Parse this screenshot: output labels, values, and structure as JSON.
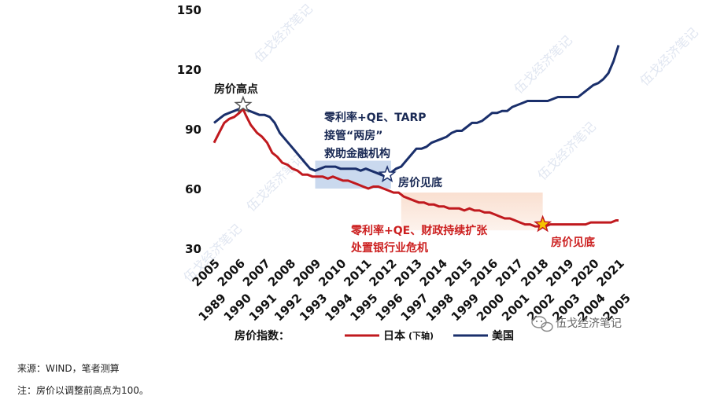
{
  "chart_data": {
    "type": "line",
    "yticks": [
      150,
      120,
      90,
      60,
      30
    ],
    "ylim": [
      30,
      150
    ],
    "x_labels_bottom": [
      "1989",
      "1990",
      "1991",
      "1992",
      "1993",
      "1994",
      "1995",
      "1996",
      "1997",
      "1998",
      "1999",
      "2000",
      "2001",
      "2002",
      "2003",
      "2004",
      "2005"
    ],
    "x_labels_top": [
      "2005",
      "2006",
      "2007",
      "2008",
      "2009",
      "2010",
      "2011",
      "2012",
      "2013",
      "2014",
      "2015",
      "2016",
      "2017",
      "2018",
      "2019",
      "2020",
      "2021"
    ],
    "series": [
      {
        "name": "日本",
        "name_suffix": "(下轴)",
        "color": "#c0191e",
        "points": [
          [
            0.0,
            83
          ],
          [
            0.2,
            88
          ],
          [
            0.4,
            93
          ],
          [
            0.6,
            95
          ],
          [
            0.8,
            96
          ],
          [
            1.0,
            98
          ],
          [
            1.15,
            100
          ],
          [
            1.25,
            97
          ],
          [
            1.45,
            92
          ],
          [
            1.7,
            88
          ],
          [
            1.9,
            86
          ],
          [
            2.1,
            83
          ],
          [
            2.3,
            78
          ],
          [
            2.5,
            76
          ],
          [
            2.7,
            73
          ],
          [
            2.9,
            72
          ],
          [
            3.1,
            70
          ],
          [
            3.3,
            69
          ],
          [
            3.5,
            67
          ],
          [
            3.7,
            67
          ],
          [
            3.9,
            66
          ],
          [
            4.1,
            66
          ],
          [
            4.3,
            66
          ],
          [
            4.5,
            65
          ],
          [
            4.7,
            66
          ],
          [
            4.9,
            65
          ],
          [
            5.1,
            64
          ],
          [
            5.3,
            64
          ],
          [
            5.5,
            63
          ],
          [
            5.7,
            62
          ],
          [
            5.9,
            61
          ],
          [
            6.1,
            60
          ],
          [
            6.3,
            61
          ],
          [
            6.5,
            61
          ],
          [
            6.7,
            60
          ],
          [
            6.9,
            59
          ],
          [
            7.1,
            58
          ],
          [
            7.3,
            58
          ],
          [
            7.5,
            56
          ],
          [
            7.7,
            55
          ],
          [
            7.9,
            54
          ],
          [
            8.1,
            53
          ],
          [
            8.3,
            53
          ],
          [
            8.5,
            52
          ],
          [
            8.7,
            52
          ],
          [
            8.9,
            51
          ],
          [
            9.1,
            51
          ],
          [
            9.3,
            50
          ],
          [
            9.5,
            50
          ],
          [
            9.7,
            50
          ],
          [
            9.9,
            49
          ],
          [
            10.1,
            50
          ],
          [
            10.3,
            49
          ],
          [
            10.5,
            49
          ],
          [
            10.7,
            48
          ],
          [
            10.9,
            48
          ],
          [
            11.1,
            47
          ],
          [
            11.3,
            46
          ],
          [
            11.5,
            45
          ],
          [
            11.7,
            45
          ],
          [
            11.9,
            44
          ],
          [
            12.1,
            43
          ],
          [
            12.3,
            42
          ],
          [
            12.5,
            42
          ],
          [
            12.7,
            41
          ],
          [
            12.9,
            41
          ],
          [
            13.1,
            41
          ],
          [
            13.3,
            42
          ],
          [
            13.5,
            42
          ],
          [
            13.7,
            42
          ],
          [
            13.9,
            42
          ],
          [
            14.1,
            42
          ],
          [
            14.3,
            42
          ],
          [
            14.5,
            42
          ],
          [
            14.7,
            42
          ],
          [
            14.9,
            43
          ],
          [
            15.1,
            43
          ],
          [
            15.3,
            43
          ],
          [
            15.5,
            43
          ],
          [
            15.7,
            43
          ],
          [
            15.9,
            44
          ],
          [
            16.0,
            44
          ]
        ]
      },
      {
        "name": "美国",
        "color": "#1a2f6b",
        "points": [
          [
            0.0,
            93
          ],
          [
            0.2,
            95
          ],
          [
            0.4,
            97
          ],
          [
            0.6,
            98
          ],
          [
            0.8,
            99
          ],
          [
            1.0,
            100
          ],
          [
            1.2,
            100
          ],
          [
            1.4,
            99
          ],
          [
            1.6,
            98
          ],
          [
            1.8,
            97
          ],
          [
            2.0,
            97
          ],
          [
            2.2,
            96
          ],
          [
            2.4,
            93
          ],
          [
            2.6,
            88
          ],
          [
            2.8,
            85
          ],
          [
            3.0,
            82
          ],
          [
            3.2,
            79
          ],
          [
            3.4,
            76
          ],
          [
            3.6,
            73
          ],
          [
            3.8,
            70
          ],
          [
            4.0,
            69
          ],
          [
            4.2,
            70
          ],
          [
            4.4,
            71
          ],
          [
            4.6,
            71
          ],
          [
            4.8,
            71
          ],
          [
            5.0,
            70
          ],
          [
            5.2,
            70
          ],
          [
            5.4,
            70
          ],
          [
            5.6,
            70
          ],
          [
            5.8,
            69
          ],
          [
            6.0,
            70
          ],
          [
            6.2,
            69
          ],
          [
            6.4,
            68
          ],
          [
            6.6,
            67
          ],
          [
            6.8,
            66
          ],
          [
            7.0,
            68
          ],
          [
            7.2,
            70
          ],
          [
            7.4,
            71
          ],
          [
            7.6,
            74
          ],
          [
            7.8,
            77
          ],
          [
            8.0,
            80
          ],
          [
            8.2,
            80
          ],
          [
            8.4,
            81
          ],
          [
            8.6,
            83
          ],
          [
            8.8,
            84
          ],
          [
            9.0,
            85
          ],
          [
            9.2,
            86
          ],
          [
            9.4,
            88
          ],
          [
            9.6,
            89
          ],
          [
            9.8,
            89
          ],
          [
            10.0,
            91
          ],
          [
            10.2,
            93
          ],
          [
            10.4,
            93
          ],
          [
            10.6,
            94
          ],
          [
            10.8,
            96
          ],
          [
            11.0,
            98
          ],
          [
            11.2,
            98
          ],
          [
            11.4,
            99
          ],
          [
            11.6,
            99
          ],
          [
            11.8,
            101
          ],
          [
            12.0,
            102
          ],
          [
            12.2,
            103
          ],
          [
            12.4,
            104
          ],
          [
            12.6,
            104
          ],
          [
            12.8,
            104
          ],
          [
            13.0,
            104
          ],
          [
            13.2,
            104
          ],
          [
            13.4,
            105
          ],
          [
            13.6,
            106
          ],
          [
            13.8,
            106
          ],
          [
            14.0,
            106
          ],
          [
            14.2,
            106
          ],
          [
            14.4,
            106
          ],
          [
            14.6,
            108
          ],
          [
            14.8,
            110
          ],
          [
            15.0,
            112
          ],
          [
            15.2,
            113
          ],
          [
            15.4,
            115
          ],
          [
            15.6,
            118
          ],
          [
            15.8,
            124
          ],
          [
            16.0,
            132
          ]
        ]
      }
    ],
    "annotations": {
      "peak_label": "房价高点",
      "us_policy_lines": [
        "零利率+QE、TARP",
        "接管“两房”",
        "救助金融机构"
      ],
      "us_bottom_label": "房价见底",
      "jp_policy_lines": [
        "零利率+QE、财政持续扩张",
        "处置银行业危机"
      ],
      "jp_bottom_label": "房价见底"
    },
    "shaded_regions": [
      {
        "x_from": 4.0,
        "x_to": 7.0,
        "y_from": 60,
        "y_to": 74,
        "color": "#bdd0ea"
      },
      {
        "x_from": 7.4,
        "x_to": 13.0,
        "y_from": 39,
        "y_to": 58,
        "color": "#f9dccb"
      }
    ],
    "markers": [
      {
        "x": 1.15,
        "y": 102,
        "fill": "#ffffff",
        "stroke": "#555555"
      },
      {
        "x": 6.85,
        "y": 67,
        "fill": "#ffffff",
        "stroke": "#1a2f6b"
      },
      {
        "x": 13.0,
        "y": 42,
        "fill": "#f5c400",
        "stroke": "#c0191e"
      }
    ],
    "legend": {
      "title": "房价指数：",
      "items": [
        {
          "label": "日本",
          "suffix": "(下轴)",
          "color": "#c0191e"
        },
        {
          "label": "美国",
          "color": "#1a2f6b"
        }
      ],
      "placement": "bottom"
    },
    "watermark": "伍戈经济笔记"
  },
  "footer": {
    "source": "来源：WIND，笔者测算",
    "note": "注：房价以调整前高点为100。"
  }
}
